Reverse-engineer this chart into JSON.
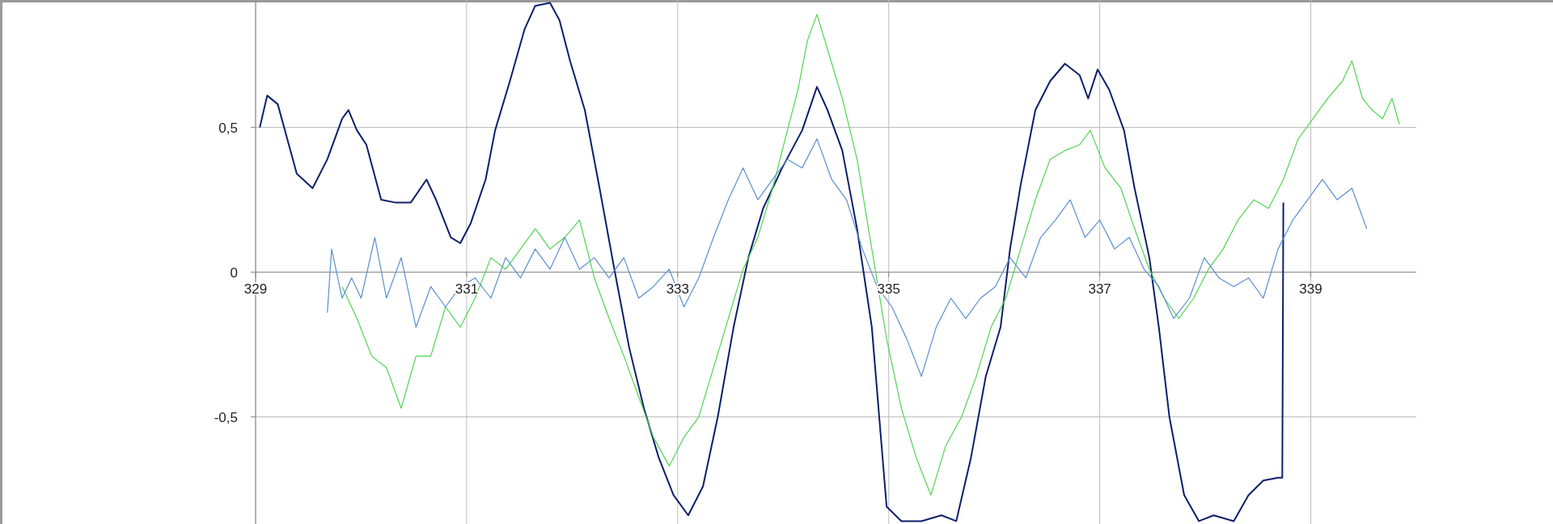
{
  "chart_data": {
    "type": "line",
    "xlim": [
      329,
      340
    ],
    "ylim": [
      -0.87,
      0.94
    ],
    "xticks": [
      329,
      331,
      333,
      335,
      337,
      339
    ],
    "yticks": [
      {
        "value": -0.5,
        "label": "-0,5"
      },
      0,
      {
        "value": 0.5,
        "label": "0,5"
      }
    ],
    "grid": true,
    "marker": "none",
    "line_style": "solid",
    "series": [
      {
        "color": "#0d1f6b",
        "x": [
          329.04,
          329.11,
          329.21,
          329.3,
          329.39,
          329.54,
          329.68,
          329.82,
          329.88,
          329.96,
          330.05,
          330.19,
          330.33,
          330.47,
          330.62,
          330.71,
          330.85,
          330.94,
          331.04,
          331.18,
          331.27,
          331.41,
          331.55,
          331.65,
          331.79,
          331.88,
          331.98,
          332.12,
          332.26,
          332.4,
          332.54,
          332.68,
          332.82,
          332.96,
          333.1,
          333.24,
          333.38,
          333.53,
          333.67,
          333.81,
          333.99,
          334.18,
          334.32,
          334.42,
          334.56,
          334.7,
          334.84,
          334.98,
          335.12,
          335.31,
          335.5,
          335.64,
          335.78,
          335.92,
          336.06,
          336.15,
          336.25,
          336.39,
          336.53,
          336.67,
          336.81,
          336.89,
          336.98,
          337.09,
          337.23,
          337.33,
          337.47,
          337.56,
          337.66,
          337.8,
          337.94,
          338.08,
          338.27,
          338.41,
          338.55,
          338.69,
          338.73,
          338.74
        ],
        "values": [
          0.5,
          0.61,
          0.58,
          0.46,
          0.34,
          0.29,
          0.39,
          0.53,
          0.56,
          0.49,
          0.44,
          0.25,
          0.24,
          0.24,
          0.32,
          0.25,
          0.12,
          0.1,
          0.17,
          0.32,
          0.49,
          0.66,
          0.84,
          0.92,
          0.93,
          0.87,
          0.73,
          0.56,
          0.29,
          0.01,
          -0.26,
          -0.47,
          -0.64,
          -0.77,
          -0.84,
          -0.74,
          -0.5,
          -0.19,
          0.05,
          0.22,
          0.36,
          0.49,
          0.64,
          0.56,
          0.42,
          0.15,
          -0.19,
          -0.81,
          -0.86,
          -0.86,
          -0.84,
          -0.86,
          -0.64,
          -0.36,
          -0.19,
          0.08,
          0.3,
          0.56,
          0.66,
          0.72,
          0.68,
          0.6,
          0.7,
          0.63,
          0.49,
          0.29,
          0.05,
          -0.19,
          -0.5,
          -0.77,
          -0.86,
          -0.84,
          -0.86,
          -0.77,
          -0.72,
          -0.71,
          -0.71,
          0.24
        ]
      },
      {
        "color": "#52d452",
        "x": [
          329.82,
          329.96,
          330.1,
          330.24,
          330.38,
          330.52,
          330.66,
          330.8,
          330.94,
          331.08,
          331.23,
          331.37,
          331.51,
          331.65,
          331.79,
          331.93,
          332.07,
          332.21,
          332.35,
          332.49,
          332.63,
          332.77,
          332.92,
          333.06,
          333.2,
          333.34,
          333.48,
          333.62,
          333.76,
          333.9,
          334.04,
          334.14,
          334.23,
          334.32,
          334.42,
          334.56,
          334.7,
          334.84,
          334.98,
          335.12,
          335.26,
          335.4,
          335.54,
          335.69,
          335.83,
          335.97,
          336.11,
          336.25,
          336.39,
          336.53,
          336.67,
          336.81,
          336.91,
          337.05,
          337.2,
          337.33,
          337.47,
          337.61,
          337.75,
          337.89,
          338.03,
          338.17,
          338.31,
          338.46,
          338.6,
          338.74,
          338.88,
          339.02,
          339.16,
          339.3,
          339.39,
          339.49,
          339.58,
          339.68,
          339.77,
          339.84
        ],
        "values": [
          -0.05,
          -0.16,
          -0.29,
          -0.33,
          -0.47,
          -0.29,
          -0.29,
          -0.12,
          -0.19,
          -0.09,
          0.05,
          0.01,
          0.08,
          0.15,
          0.08,
          0.12,
          0.18,
          -0.02,
          -0.16,
          -0.29,
          -0.43,
          -0.57,
          -0.67,
          -0.57,
          -0.5,
          -0.33,
          -0.16,
          0.01,
          0.12,
          0.29,
          0.49,
          0.63,
          0.8,
          0.89,
          0.77,
          0.6,
          0.39,
          0.08,
          -0.23,
          -0.47,
          -0.64,
          -0.77,
          -0.6,
          -0.5,
          -0.36,
          -0.19,
          -0.09,
          0.08,
          0.25,
          0.39,
          0.42,
          0.44,
          0.49,
          0.36,
          0.29,
          0.15,
          0.01,
          -0.09,
          -0.16,
          -0.09,
          0.01,
          0.08,
          0.18,
          0.25,
          0.22,
          0.32,
          0.46,
          0.53,
          0.6,
          0.66,
          0.73,
          0.6,
          0.56,
          0.53,
          0.6,
          0.51
        ]
      },
      {
        "color": "#5b8fd0",
        "x": [
          329.68,
          329.72,
          329.82,
          329.91,
          330.0,
          330.13,
          330.24,
          330.38,
          330.52,
          330.66,
          330.8,
          330.94,
          331.08,
          331.23,
          331.37,
          331.51,
          331.65,
          331.79,
          331.93,
          332.07,
          332.21,
          332.35,
          332.49,
          332.63,
          332.77,
          332.92,
          333.06,
          333.2,
          333.34,
          333.48,
          333.62,
          333.76,
          333.9,
          334.04,
          334.18,
          334.32,
          334.46,
          334.6,
          334.75,
          334.89,
          335.03,
          335.17,
          335.31,
          335.45,
          335.59,
          335.73,
          335.87,
          336.01,
          336.15,
          336.3,
          336.44,
          336.58,
          336.72,
          336.86,
          337.0,
          337.14,
          337.28,
          337.42,
          337.56,
          337.7,
          337.85,
          337.99,
          338.13,
          338.27,
          338.41,
          338.55,
          338.69,
          338.83,
          338.97,
          339.11,
          339.25,
          339.39,
          339.53
        ],
        "values": [
          -0.14,
          0.08,
          -0.09,
          -0.02,
          -0.09,
          0.12,
          -0.09,
          0.05,
          -0.19,
          -0.05,
          -0.12,
          -0.05,
          -0.02,
          -0.09,
          0.05,
          -0.02,
          0.08,
          0.01,
          0.12,
          0.01,
          0.05,
          -0.02,
          0.05,
          -0.09,
          -0.05,
          0.01,
          -0.12,
          -0.02,
          0.12,
          0.25,
          0.36,
          0.25,
          0.32,
          0.39,
          0.36,
          0.46,
          0.32,
          0.25,
          0.08,
          -0.05,
          -0.12,
          -0.23,
          -0.36,
          -0.19,
          -0.09,
          -0.16,
          -0.09,
          -0.05,
          0.05,
          -0.02,
          0.12,
          0.18,
          0.25,
          0.12,
          0.18,
          0.08,
          0.12,
          0.01,
          -0.05,
          -0.16,
          -0.09,
          0.05,
          -0.02,
          -0.05,
          -0.02,
          -0.09,
          0.08,
          0.18,
          0.25,
          0.32,
          0.25,
          0.29,
          0.15
        ]
      }
    ]
  }
}
